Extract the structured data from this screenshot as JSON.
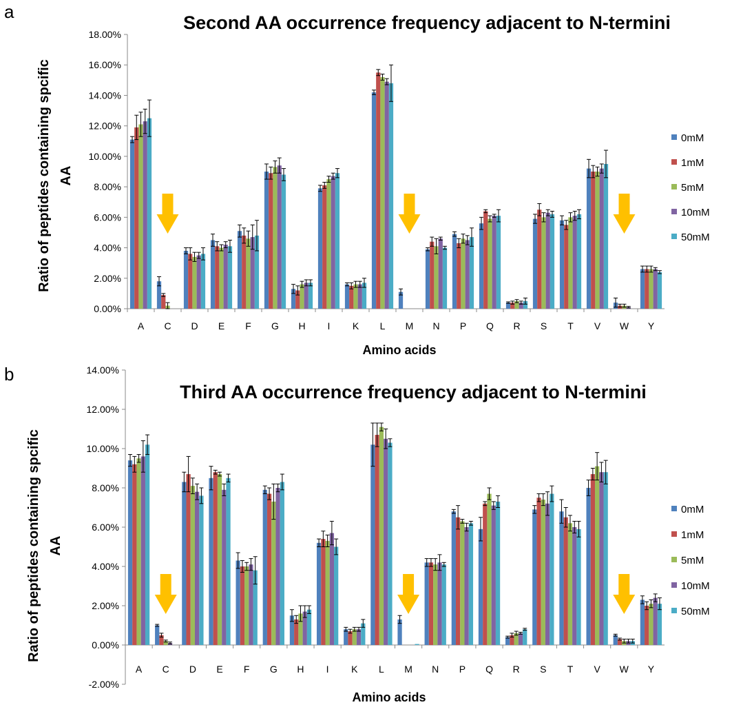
{
  "colors": {
    "series": [
      "#4f81bd",
      "#c0504d",
      "#9bbb59",
      "#8064a2",
      "#4bacc6"
    ],
    "arrow": "#ffc000",
    "axis": "#888888",
    "errorbar": "#000000"
  },
  "chart_data": [
    {
      "panel": "a",
      "type": "bar",
      "title": "Second AA occurrence frequency adjacent to N-termini",
      "xlabel": "Amino acids",
      "ylabel_lines": [
        "Ratio of peptides containing spcific",
        "AA"
      ],
      "ylim": [
        0,
        18
      ],
      "yticks": [
        0,
        2,
        4,
        6,
        8,
        10,
        12,
        14,
        16,
        18
      ],
      "ytick_labels": [
        "0.00%",
        "2.00%",
        "4.00%",
        "6.00%",
        "8.00%",
        "10.00%",
        "12.00%",
        "14.00%",
        "16.00%",
        "18.00%"
      ],
      "y_unit": "percent",
      "legend_position": "right",
      "grid": false,
      "categories": [
        "A",
        "C",
        "D",
        "E",
        "F",
        "G",
        "H",
        "I",
        "K",
        "L",
        "M",
        "N",
        "P",
        "Q",
        "R",
        "S",
        "T",
        "V",
        "W",
        "Y"
      ],
      "arrows_at": [
        "C",
        "M",
        "W"
      ],
      "series": [
        {
          "name": "0mM",
          "values": [
            11.1,
            1.8,
            3.8,
            4.5,
            5.1,
            9.0,
            1.3,
            7.9,
            1.6,
            14.2,
            1.1,
            3.9,
            4.9,
            5.6,
            0.4,
            5.9,
            5.8,
            9.2,
            0.4,
            2.6
          ],
          "errors": [
            0.2,
            0.3,
            0.2,
            0.4,
            0.4,
            0.5,
            0.3,
            0.2,
            0.1,
            0.15,
            0.2,
            0.1,
            0.15,
            0.4,
            0.05,
            0.3,
            0.3,
            0.6,
            0.3,
            0.2
          ]
        },
        {
          "name": "1mM",
          "values": [
            11.9,
            0.9,
            3.6,
            4.1,
            4.8,
            8.9,
            1.2,
            8.1,
            1.5,
            15.5,
            0.0,
            4.4,
            4.3,
            6.4,
            0.4,
            6.5,
            5.5,
            9.0,
            0.2,
            2.6
          ],
          "errors": [
            0.8,
            0.1,
            0.4,
            0.3,
            0.5,
            0.4,
            0.3,
            0.2,
            0.2,
            0.2,
            0.0,
            0.3,
            0.3,
            0.1,
            0.1,
            0.4,
            0.3,
            0.4,
            0.1,
            0.2
          ]
        },
        {
          "name": "5mM",
          "values": [
            12.1,
            0.2,
            3.4,
            4.0,
            4.6,
            9.3,
            1.6,
            8.5,
            1.6,
            15.2,
            0.0,
            4.1,
            4.6,
            5.9,
            0.5,
            6.0,
            6.0,
            9.0,
            0.2,
            2.6
          ],
          "errors": [
            0.8,
            0.2,
            0.3,
            0.2,
            0.5,
            0.4,
            0.2,
            0.2,
            0.2,
            0.2,
            0.0,
            0.5,
            0.3,
            0.2,
            0.1,
            0.3,
            0.3,
            0.3,
            0.1,
            0.2
          ]
        },
        {
          "name": "10mM",
          "values": [
            12.3,
            0.0,
            3.5,
            4.2,
            4.7,
            9.4,
            1.7,
            8.7,
            1.6,
            14.9,
            0.0,
            4.6,
            4.5,
            6.1,
            0.4,
            6.3,
            6.1,
            9.2,
            0.1,
            2.6
          ],
          "errors": [
            0.8,
            0.0,
            0.2,
            0.2,
            0.8,
            0.5,
            0.2,
            0.2,
            0.2,
            0.2,
            0.0,
            0.1,
            0.3,
            0.1,
            0.1,
            0.2,
            0.3,
            0.3,
            0.05,
            0.1
          ]
        },
        {
          "name": "50mM",
          "values": [
            12.5,
            0.0,
            3.6,
            4.1,
            4.8,
            8.8,
            1.7,
            8.9,
            1.7,
            14.8,
            0.0,
            4.0,
            4.7,
            6.1,
            0.5,
            6.2,
            6.2,
            9.5,
            0.0,
            2.4
          ],
          "errors": [
            1.2,
            0.0,
            0.4,
            0.4,
            1.0,
            0.4,
            0.2,
            0.3,
            0.3,
            1.2,
            0.0,
            0.1,
            0.6,
            0.4,
            0.2,
            0.2,
            0.3,
            0.9,
            0.0,
            0.1
          ]
        }
      ]
    },
    {
      "panel": "b",
      "type": "bar",
      "title": "Third AA occurrence frequency adjacent to N-termini",
      "xlabel": "Amino acids",
      "ylabel_lines": [
        "Ratio of peptides containing spcific",
        "AA"
      ],
      "ylim": [
        -2,
        14
      ],
      "yticks": [
        -2,
        0,
        2,
        4,
        6,
        8,
        10,
        12,
        14
      ],
      "ytick_labels": [
        "-2.00%",
        "0.00%",
        "2.00%",
        "4.00%",
        "6.00%",
        "8.00%",
        "10.00%",
        "12.00%",
        "14.00%"
      ],
      "y_unit": "percent",
      "legend_position": "right",
      "grid": false,
      "categories": [
        "A",
        "C",
        "D",
        "E",
        "F",
        "G",
        "H",
        "I",
        "K",
        "L",
        "M",
        "N",
        "P",
        "Q",
        "R",
        "S",
        "T",
        "V",
        "W",
        "Y"
      ],
      "arrows_at": [
        "C",
        "M",
        "W"
      ],
      "series": [
        {
          "name": "0mM",
          "values": [
            9.4,
            1.0,
            8.3,
            8.5,
            4.3,
            7.9,
            1.5,
            5.2,
            0.8,
            10.2,
            1.3,
            4.2,
            6.8,
            5.9,
            0.4,
            6.9,
            6.8,
            8.0,
            0.5,
            2.3
          ],
          "errors": [
            0.3,
            0.05,
            0.5,
            0.6,
            0.4,
            0.2,
            0.3,
            0.2,
            0.1,
            1.1,
            0.2,
            0.2,
            0.1,
            0.6,
            0.05,
            0.2,
            0.6,
            0.4,
            0.05,
            0.2
          ]
        },
        {
          "name": "1mM",
          "values": [
            9.2,
            0.5,
            8.7,
            8.8,
            4.0,
            7.7,
            1.3,
            5.4,
            0.7,
            10.7,
            0.0,
            4.2,
            6.5,
            7.2,
            0.5,
            7.5,
            6.5,
            8.7,
            0.3,
            2.0
          ],
          "errors": [
            0.4,
            0.1,
            0.9,
            0.1,
            0.3,
            0.3,
            0.2,
            0.4,
            0.1,
            0.6,
            0.0,
            0.2,
            0.6,
            0.1,
            0.1,
            0.2,
            0.5,
            0.3,
            0.05,
            0.2
          ]
        },
        {
          "name": "5mM",
          "values": [
            9.5,
            0.2,
            8.1,
            8.7,
            4.0,
            7.3,
            1.6,
            5.3,
            0.8,
            11.1,
            0.0,
            4.1,
            6.3,
            7.7,
            0.6,
            7.4,
            6.2,
            9.1,
            0.2,
            2.1
          ],
          "errors": [
            0.2,
            0.05,
            0.4,
            0.1,
            0.2,
            0.9,
            0.4,
            0.3,
            0.1,
            0.2,
            0.0,
            0.3,
            0.1,
            0.3,
            0.1,
            0.3,
            0.4,
            0.7,
            0.1,
            0.2
          ]
        },
        {
          "name": "10mM",
          "values": [
            9.6,
            0.1,
            7.8,
            7.9,
            4.1,
            8.0,
            1.7,
            5.7,
            0.8,
            10.5,
            0.0,
            4.2,
            6.0,
            7.1,
            0.6,
            7.2,
            6.0,
            8.8,
            0.2,
            2.4
          ],
          "errors": [
            0.8,
            0.05,
            0.4,
            0.3,
            0.3,
            0.2,
            0.3,
            0.6,
            0.1,
            0.5,
            0.0,
            0.4,
            0.2,
            0.2,
            0.05,
            0.6,
            0.3,
            0.5,
            0.1,
            0.2
          ]
        },
        {
          "name": "50mM",
          "values": [
            10.2,
            0.0,
            7.6,
            8.5,
            3.8,
            8.3,
            1.8,
            5.0,
            1.1,
            10.3,
            0.05,
            4.1,
            6.2,
            7.3,
            0.8,
            7.7,
            5.9,
            8.8,
            0.2,
            2.1
          ],
          "errors": [
            0.5,
            0.0,
            0.4,
            0.2,
            0.7,
            0.4,
            0.2,
            0.4,
            0.2,
            0.2,
            0.0,
            0.1,
            0.1,
            0.3,
            0.05,
            0.4,
            0.4,
            0.6,
            0.1,
            0.3
          ]
        }
      ]
    }
  ]
}
